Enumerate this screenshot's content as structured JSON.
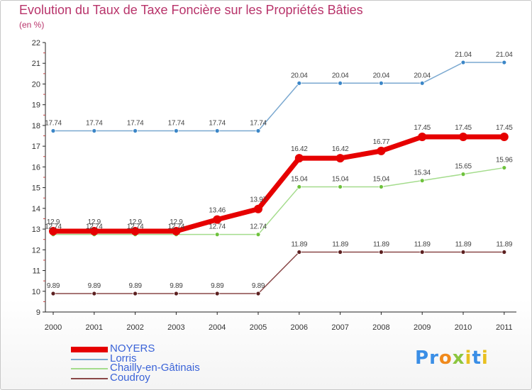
{
  "title": "Evolution du Taux de Taxe Foncière sur les Propriétés Bâties",
  "subtitle": "(en %)",
  "brand": {
    "letters": [
      "P",
      "r",
      "o",
      "x",
      "i",
      "t",
      "i"
    ],
    "colors": [
      "#3a8ee6",
      "#3a8ee6",
      "#f08a1c",
      "#8cc63f",
      "#e8c020",
      "#3a8ee6",
      "#e8c020"
    ]
  },
  "chart_data": {
    "type": "line",
    "title": "Evolution du Taux de Taxe Foncière sur les Propriétés Bâties",
    "ylabel": "(en %)",
    "xlabel": "",
    "x": [
      "2000",
      "2001",
      "2002",
      "2003",
      "2004",
      "2005",
      "2006",
      "2007",
      "2008",
      "2009",
      "2010",
      "2011"
    ],
    "ylim": [
      9,
      22
    ],
    "yticks": [
      "9",
      "10",
      "11",
      "12",
      "13",
      "14",
      "15",
      "16",
      "17",
      "18",
      "19",
      "20",
      "21",
      "22"
    ],
    "grid": false,
    "legend_position": "bottom-left",
    "series": [
      {
        "name": "NOYERS",
        "color": "#e60000",
        "emphasis": true,
        "values": [
          12.9,
          12.9,
          12.9,
          12.9,
          13.46,
          13.97,
          16.42,
          16.42,
          16.77,
          17.45,
          17.45,
          17.45
        ],
        "labels": [
          "12.9",
          "12.9",
          "12.9",
          "12.9",
          "13.46",
          "13.97",
          "16.42",
          "16.42",
          "16.77",
          "17.45",
          "17.45",
          "17.45"
        ]
      },
      {
        "name": "Lorris",
        "color": "#7aa8d0",
        "marker_color": "#3b86c7",
        "values": [
          17.74,
          17.74,
          17.74,
          17.74,
          17.74,
          17.74,
          20.04,
          20.04,
          20.04,
          20.04,
          21.04,
          21.04
        ],
        "labels": [
          "17.74",
          "17.74",
          "17.74",
          "17.74",
          "17.74",
          "17.74",
          "20.04",
          "20.04",
          "20.04",
          "20.04",
          "21.04",
          "21.04"
        ]
      },
      {
        "name": "Chailly-en-Gâtinais",
        "color": "#a4dc8c",
        "marker_color": "#6ec23c",
        "values": [
          12.74,
          12.74,
          12.74,
          12.74,
          12.74,
          12.74,
          15.04,
          15.04,
          15.04,
          15.34,
          15.65,
          15.96
        ],
        "labels": [
          "12.74",
          "12.74",
          "12.74",
          "12.74",
          "12.74",
          "12.74",
          "15.04",
          "15.04",
          "15.04",
          "15.34",
          "15.65",
          "15.96"
        ]
      },
      {
        "name": "Coudroy",
        "color": "#8a4848",
        "marker_color": "#5c1f1f",
        "values": [
          9.89,
          9.89,
          9.89,
          9.89,
          9.89,
          9.89,
          11.89,
          11.89,
          11.89,
          11.89,
          11.89,
          11.89
        ],
        "labels": [
          "9.89",
          "9.89",
          "9.89",
          "9.89",
          "9.89",
          "9.89",
          "11.89",
          "11.89",
          "11.89",
          "11.89",
          "11.89",
          "11.89"
        ]
      }
    ]
  }
}
